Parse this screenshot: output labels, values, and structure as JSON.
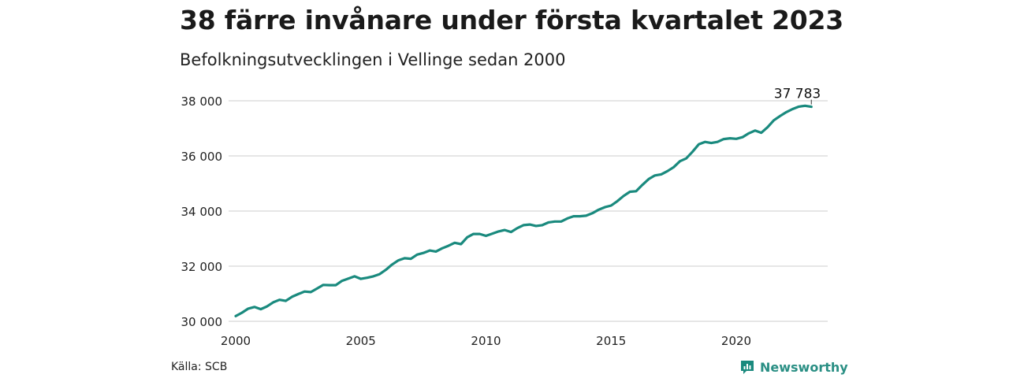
{
  "title": "38 färre invånare under första kvartalet 2023",
  "subtitle": "Befolkningsutvecklingen i Vellinge sedan 2000",
  "source": "Källa: SCB",
  "brand": {
    "name": "Newsworthy",
    "icon": "newsworthy-logo-icon",
    "color": "#1a8a7e"
  },
  "chart_data": {
    "type": "line",
    "title": "38 färre invånare under första kvartalet 2023",
    "subtitle": "Befolkningsutvecklingen i Vellinge sedan 2000",
    "xlabel": "",
    "ylabel": "",
    "xlim": [
      2000,
      2023.75
    ],
    "ylim": [
      30000,
      38000
    ],
    "x_ticks": [
      2000,
      2005,
      2010,
      2015,
      2020
    ],
    "x_tick_labels": [
      "2000",
      "2005",
      "2010",
      "2015",
      "2020"
    ],
    "y_ticks": [
      30000,
      32000,
      34000,
      36000,
      38000
    ],
    "y_tick_labels": [
      "30 000",
      "32 000",
      "34 000",
      "36 000",
      "38 000"
    ],
    "grid": "horizontal",
    "line_color": "#1a8a7e",
    "end_label": "37 783",
    "series": [
      {
        "x": [
          2000.0,
          2000.25,
          2000.5,
          2000.75,
          2001.0,
          2001.25,
          2001.5,
          2001.75,
          2002.0,
          2002.25,
          2002.5,
          2002.75,
          2003.0,
          2003.25,
          2003.5,
          2003.75,
          2004.0,
          2004.25,
          2004.5,
          2004.75,
          2005.0,
          2005.25,
          2005.5,
          2005.75,
          2006.0,
          2006.25,
          2006.5,
          2006.75,
          2007.0,
          2007.25,
          2007.5,
          2007.75,
          2008.0,
          2008.25,
          2008.5,
          2008.75,
          2009.0,
          2009.25,
          2009.5,
          2009.75,
          2010.0,
          2010.25,
          2010.5,
          2010.75,
          2011.0,
          2011.25,
          2011.5,
          2011.75,
          2012.0,
          2012.25,
          2012.5,
          2012.75,
          2013.0,
          2013.25,
          2013.5,
          2013.75,
          2014.0,
          2014.25,
          2014.5,
          2014.75,
          2015.0,
          2015.25,
          2015.5,
          2015.75,
          2016.0,
          2016.25,
          2016.5,
          2016.75,
          2017.0,
          2017.25,
          2017.5,
          2017.75,
          2018.0,
          2018.25,
          2018.5,
          2018.75,
          2019.0,
          2019.25,
          2019.5,
          2019.75,
          2020.0,
          2020.25,
          2020.5,
          2020.75,
          2021.0,
          2021.25,
          2021.5,
          2021.75,
          2022.0,
          2022.25,
          2022.5,
          2022.75,
          2023.0
        ],
        "values": [
          30190,
          30310,
          30460,
          30520,
          30440,
          30540,
          30690,
          30780,
          30740,
          30890,
          30990,
          31080,
          31060,
          31190,
          31320,
          31310,
          31310,
          31470,
          31550,
          31630,
          31540,
          31580,
          31630,
          31710,
          31870,
          32060,
          32210,
          32290,
          32270,
          32420,
          32480,
          32570,
          32530,
          32650,
          32740,
          32850,
          32800,
          33050,
          33170,
          33170,
          33100,
          33180,
          33260,
          33310,
          33240,
          33380,
          33490,
          33510,
          33460,
          33490,
          33590,
          33620,
          33620,
          33730,
          33810,
          33810,
          33830,
          33920,
          34050,
          34140,
          34200,
          34360,
          34550,
          34700,
          34720,
          34950,
          35160,
          35290,
          35330,
          35450,
          35590,
          35810,
          35910,
          36150,
          36420,
          36510,
          36470,
          36510,
          36610,
          36640,
          36620,
          36680,
          36820,
          36920,
          36840,
          37040,
          37290,
          37450,
          37590,
          37700,
          37790,
          37820,
          37783
        ]
      }
    ]
  }
}
